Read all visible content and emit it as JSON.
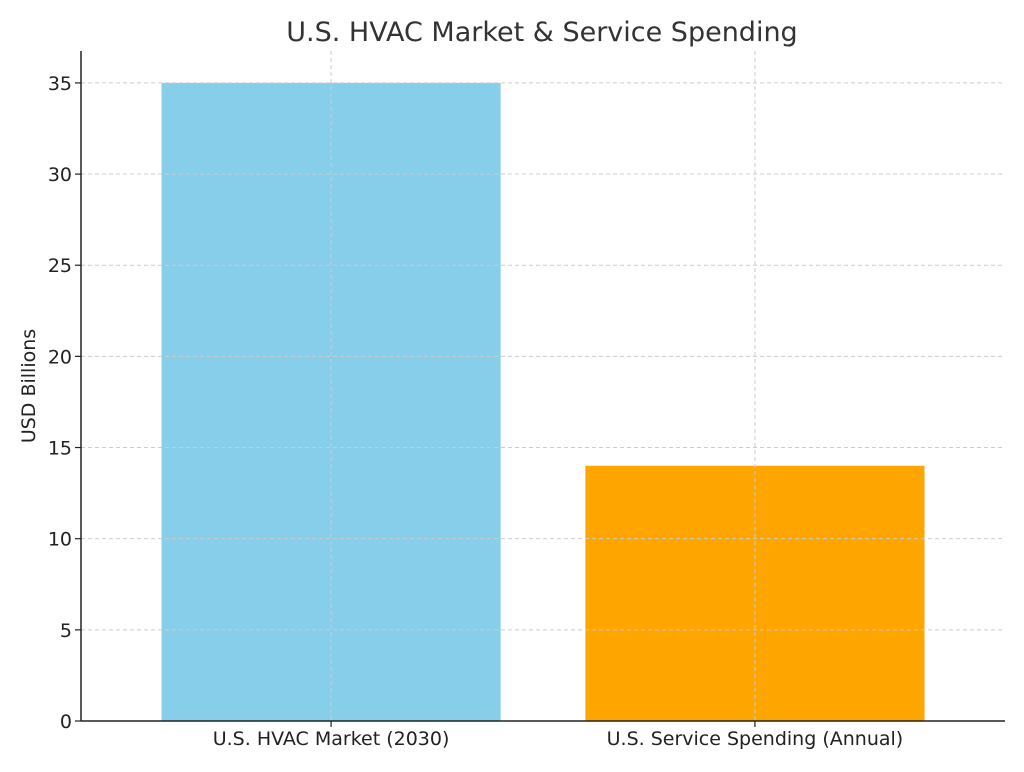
{
  "chart_data": {
    "type": "bar",
    "title": "U.S. HVAC Market & Service Spending",
    "xlabel": "",
    "ylabel": "USD Billions",
    "categories": [
      "U.S. HVAC Market (2030)",
      "U.S. Service Spending (Annual)"
    ],
    "values": [
      35,
      14
    ],
    "bar_colors": [
      "#87ceeb",
      "#ffa500"
    ],
    "ylim": [
      0,
      36.75
    ],
    "yticks": [
      0,
      5,
      10,
      15,
      20,
      25,
      30,
      35
    ],
    "grid": true,
    "grid_style": "dashed",
    "legend": "none"
  }
}
